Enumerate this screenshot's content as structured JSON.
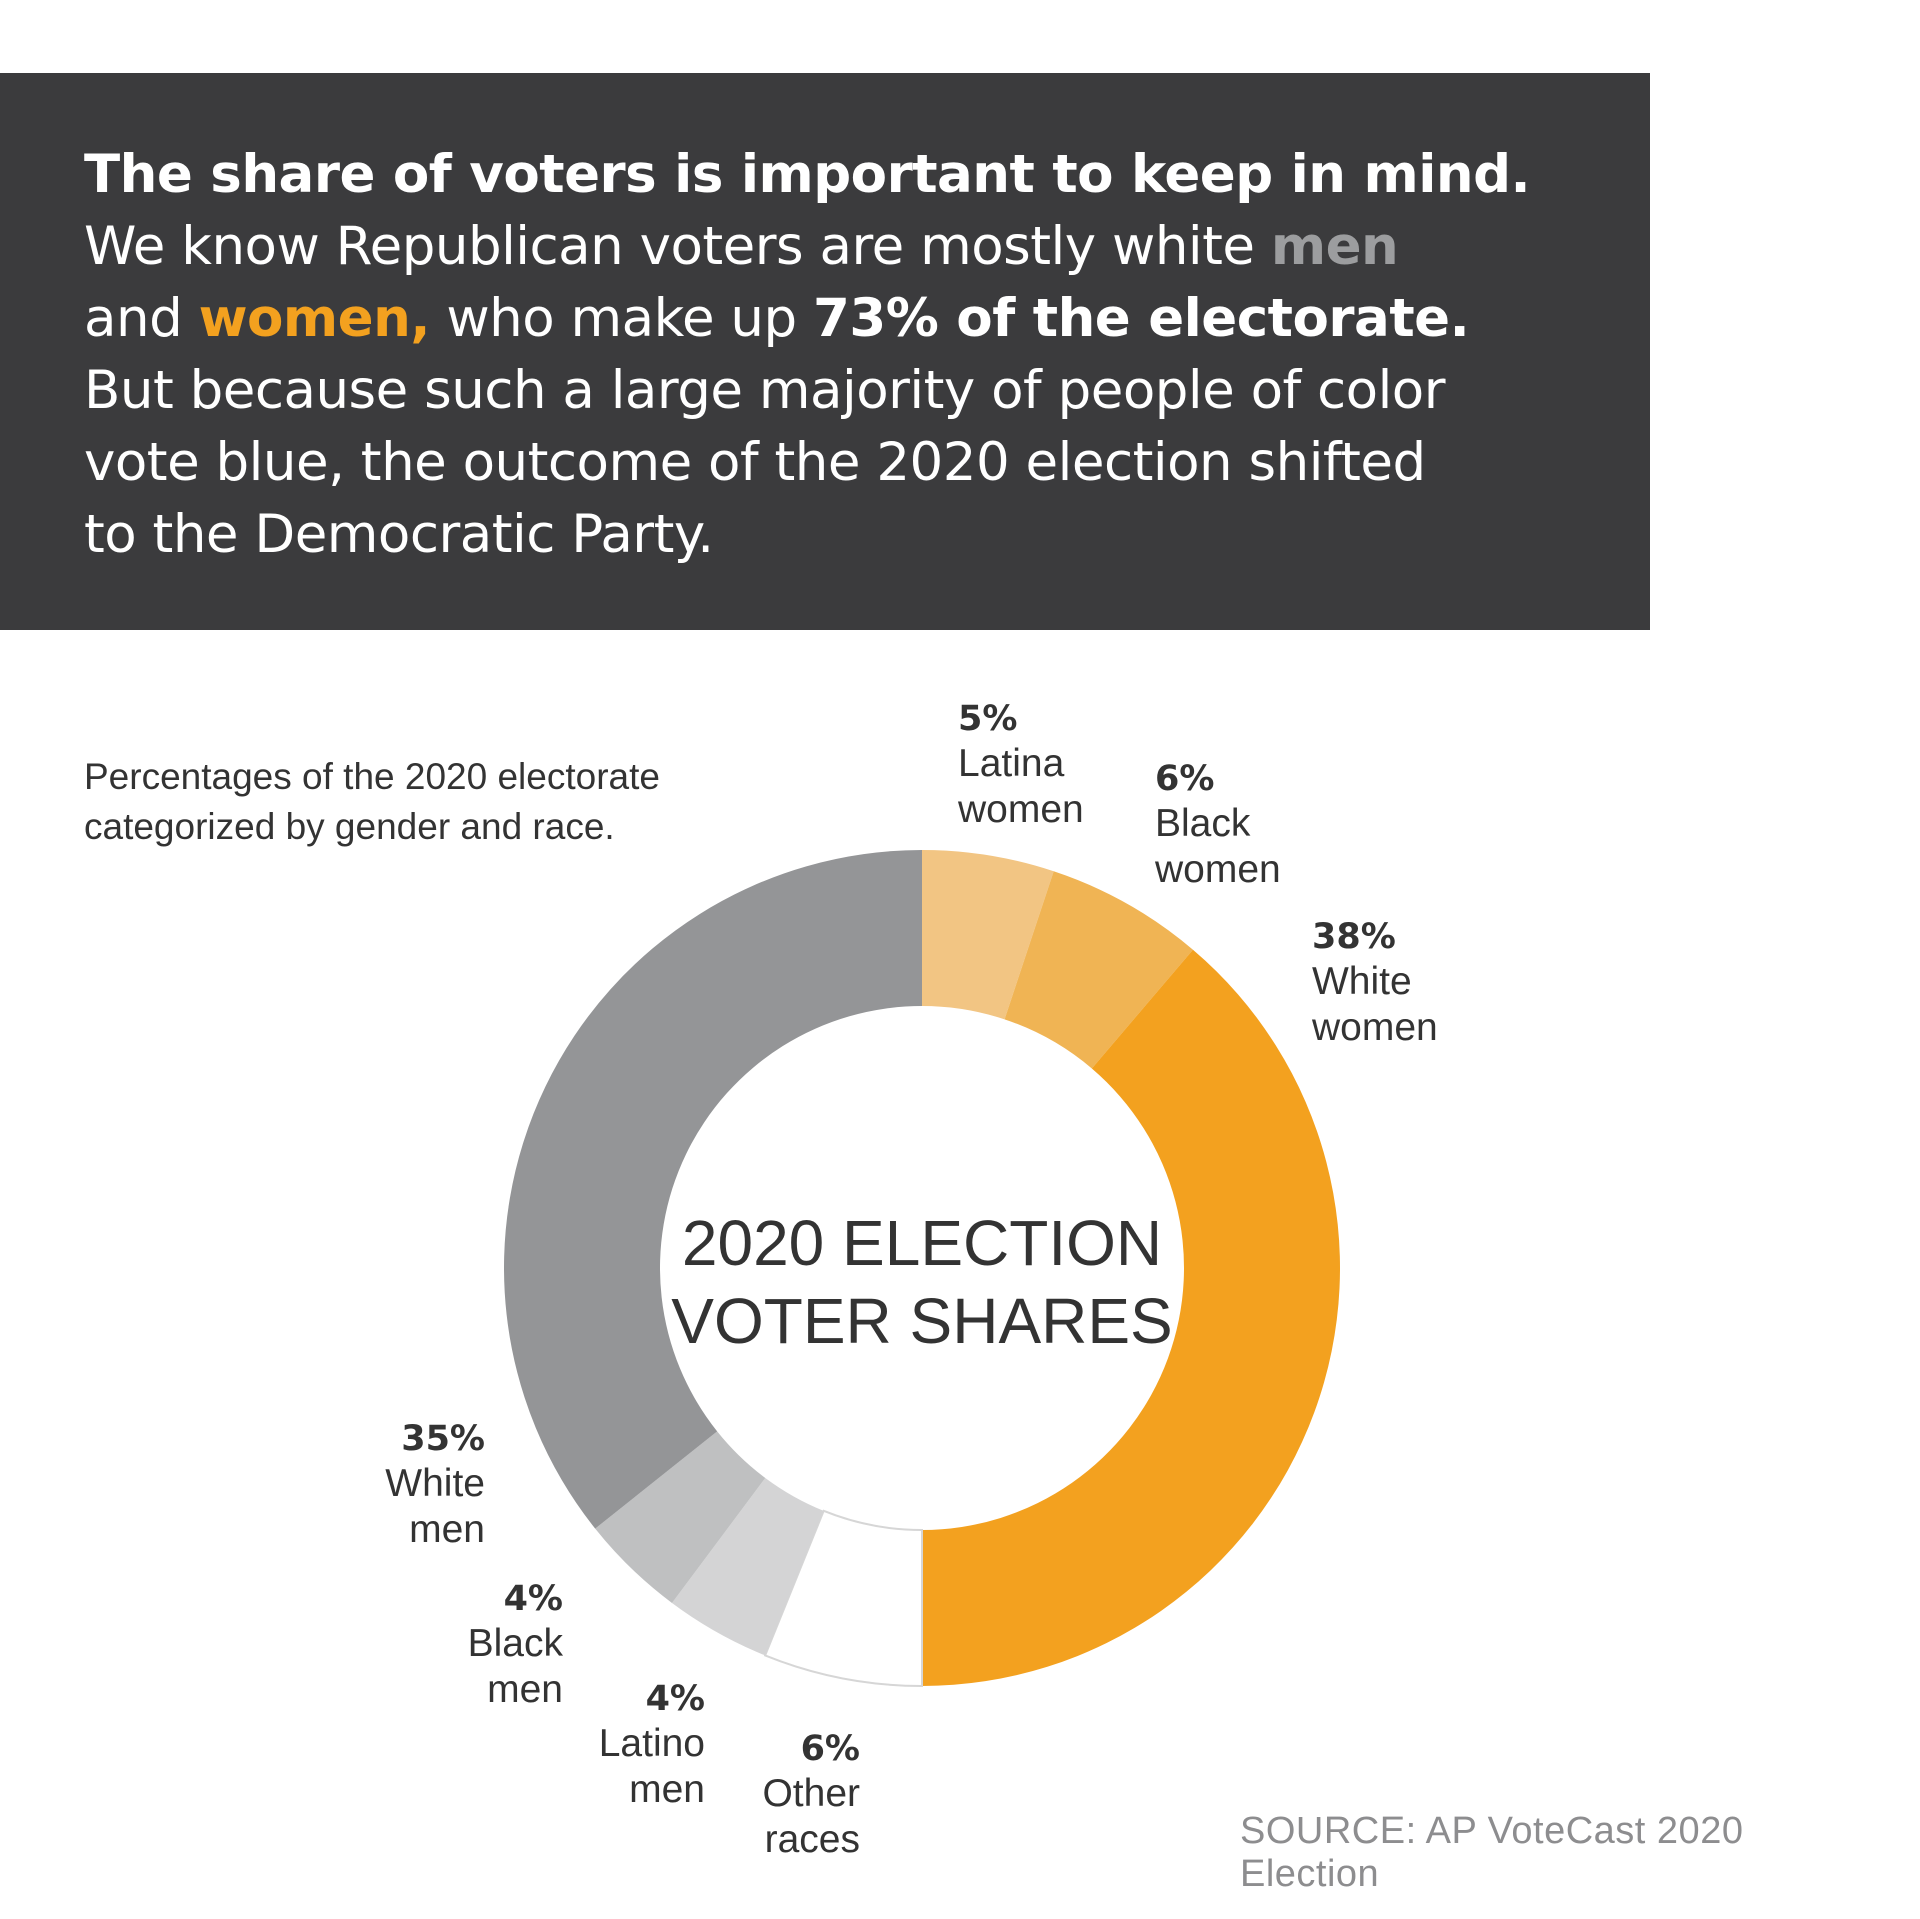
{
  "header": {
    "line1": "The share of voters is important to keep in mind.",
    "line2a": "We know Republican voters are mostly white ",
    "line2_men": "men",
    "line3a": "and ",
    "line3_women": "women,",
    "line3b": " who make up ",
    "line3c": "73% of the electorate.",
    "line4": "But because such a large majority of people of color",
    "line5": "vote blue, the outcome of the 2020 election shifted",
    "line6": "to the Democratic Party."
  },
  "subtitle": "Percentages of the 2020 electorate categorized by gender and race.",
  "source": "SOURCE: AP VoteCast 2020 Election",
  "colors": {
    "header_bg": "#3b3b3d",
    "men_accent": "#9c9d9f",
    "women_accent": "#f3a11f"
  },
  "chart_data": {
    "type": "pie",
    "title_line1": "2020 ELECTION",
    "title_line2": "VOTER SHARES",
    "slices": [
      {
        "label_pct": "5%",
        "label_line1": "Latina",
        "label_line2": "women",
        "value": 5,
        "color": "#f2c583"
      },
      {
        "label_pct": "6%",
        "label_line1": "Black",
        "label_line2": "women",
        "value": 6,
        "color": "#f0b454"
      },
      {
        "label_pct": "38%",
        "label_line1": "White",
        "label_line2": "women",
        "value": 38,
        "color": "#f3a11f"
      },
      {
        "label_pct": "6%",
        "label_line1": "Other",
        "label_line2": "races",
        "value": 6,
        "color": "#ffffff"
      },
      {
        "label_pct": "4%",
        "label_line1": "Latino",
        "label_line2": "men",
        "value": 4,
        "color": "#d4d4d5"
      },
      {
        "label_pct": "4%",
        "label_line1": "Black",
        "label_line2": "men",
        "value": 4,
        "color": "#bfc0c1"
      },
      {
        "label_pct": "35%",
        "label_line1": "White",
        "label_line2": "men",
        "value": 35,
        "color": "#949597"
      }
    ]
  }
}
